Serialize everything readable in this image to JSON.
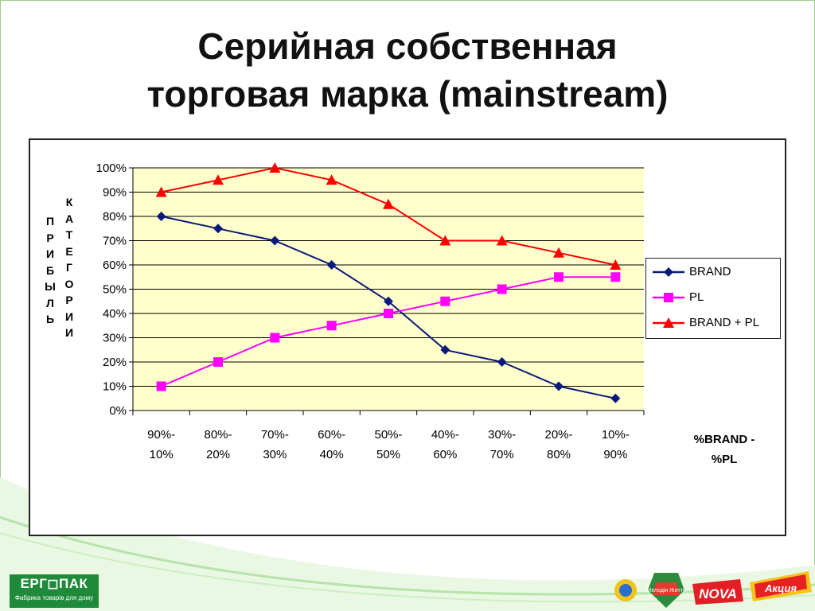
{
  "slide": {
    "title_line1": "Серийная собственная",
    "title_line2": "торговая марка (mainstream)"
  },
  "chart_data": {
    "type": "line",
    "categories": [
      [
        "90%-",
        "10%"
      ],
      [
        "80%-",
        "20%"
      ],
      [
        "70%-",
        "30%"
      ],
      [
        "60%-",
        "40%"
      ],
      [
        "50%-",
        "50%"
      ],
      [
        "40%-",
        "60%"
      ],
      [
        "30%-",
        "70%"
      ],
      [
        "20%-",
        "80%"
      ],
      [
        "10%-",
        "90%"
      ]
    ],
    "series": [
      {
        "name": "BRAND",
        "color": "#0a1a7a",
        "marker": "diamond",
        "values": [
          80,
          75,
          70,
          60,
          45,
          25,
          20,
          10,
          5
        ]
      },
      {
        "name": "PL",
        "color": "#ff00ff",
        "marker": "square",
        "values": [
          10,
          20,
          30,
          35,
          40,
          45,
          50,
          55,
          55
        ]
      },
      {
        "name": "BRAND + PL",
        "color": "#ff0000",
        "marker": "triangle",
        "values": [
          90,
          95,
          100,
          95,
          85,
          70,
          70,
          65,
          60
        ]
      }
    ],
    "ylim": [
      0,
      100
    ],
    "yticks": [
      "0%",
      "10%",
      "20%",
      "30%",
      "40%",
      "50%",
      "60%",
      "70%",
      "80%",
      "90%",
      "100%"
    ],
    "ylabel_col1": [
      "П",
      "Р",
      "И",
      "Б",
      "Ы",
      "Л",
      "Ь"
    ],
    "ylabel_col2": [
      "К",
      "А",
      "Т",
      "Е",
      "Г",
      "О",
      "Р",
      "И",
      "И"
    ],
    "xlabel_line1": "%BRAND -",
    "xlabel_line2": "%PL",
    "grid": true,
    "plot_background": "#ffffcc",
    "legend_position": "right"
  },
  "footer": {
    "company_logo": "ЕРГ◻ПАК",
    "company_tagline": "Фабрика товарів для дому",
    "partner_logos": [
      "brand-logo-1",
      "brand-logo-2",
      "brand-logo-3",
      "brand-logo-4"
    ],
    "partner_logo_1": "Мелодія Життя",
    "partner_logo_2": "NOVA",
    "partner_logo_3": "Акция"
  }
}
